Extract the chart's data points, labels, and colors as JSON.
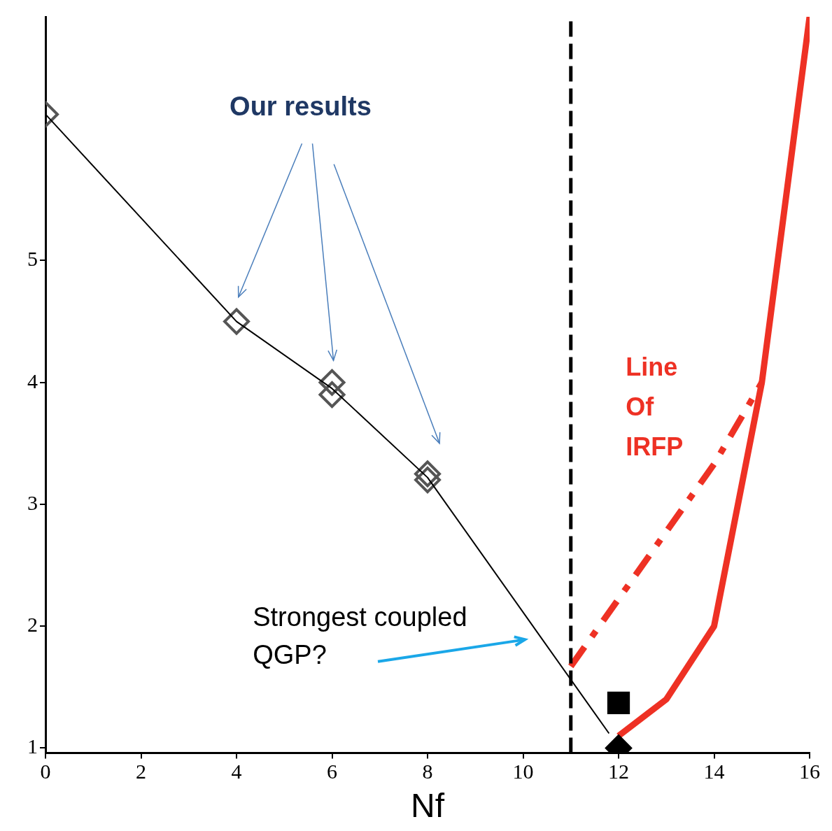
{
  "chart_data": {
    "type": "line",
    "xlabel": "Nf",
    "xlim": [
      0,
      16
    ],
    "ylim": [
      0.96,
      7
    ],
    "xticks": [
      0,
      2,
      4,
      6,
      8,
      10,
      12,
      14,
      16
    ],
    "yticks": [
      1,
      2,
      3,
      4,
      5
    ],
    "grid": false,
    "legend": false,
    "series": [
      {
        "color": "#000000",
        "x": [
          0,
          4,
          6,
          8,
          11.8
        ],
        "values": [
          6.2,
          4.5,
          3.95,
          3.22,
          1.12
        ],
        "marker": "none",
        "line_style": "solid"
      },
      {
        "type": "scatter",
        "color": "#555555",
        "x": [
          0,
          4,
          6,
          6,
          8,
          8
        ],
        "values": [
          6.2,
          4.5,
          4.0,
          3.9,
          3.25,
          3.2
        ],
        "marker": "diamond"
      },
      {
        "type": "scatter",
        "color": "#000000",
        "x": [
          12
        ],
        "values": [
          1.0
        ],
        "marker": "diamond"
      },
      {
        "type": "scatter",
        "color": "#000000",
        "x": [
          12
        ],
        "values": [
          1.37
        ],
        "marker": "square"
      },
      {
        "color": "#ee3124",
        "x": [
          12,
          13,
          14,
          15,
          16
        ],
        "values": [
          1.1,
          1.4,
          2.0,
          4.0,
          7.0
        ],
        "marker": "none",
        "line_style": "solid"
      },
      {
        "color": "#ee3124",
        "x": [
          11,
          14,
          15
        ],
        "values": [
          1.67,
          3.33,
          4.0
        ],
        "marker": "none",
        "line_style": "dashed"
      }
    ],
    "ref_lines": [
      {
        "axis": "x",
        "value": 11,
        "color": "#000000",
        "line_style": "dashed"
      }
    ],
    "annotations": [
      "Our results",
      "Strongest coupled QGP?",
      "Line Of IRFP"
    ]
  }
}
